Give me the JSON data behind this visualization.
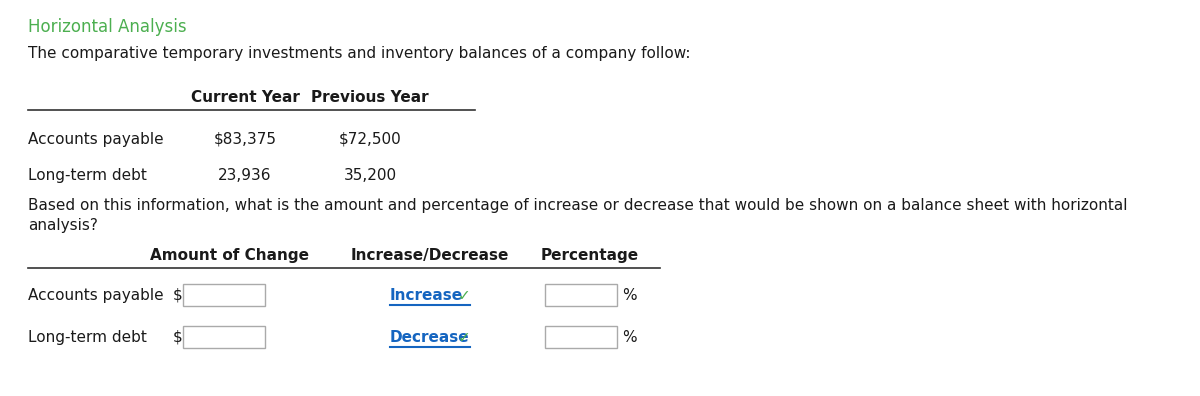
{
  "title": "Horizontal Analysis",
  "title_color": "#4CAF50",
  "subtitle": "The comparative temporary investments and inventory balances of a company follow:",
  "body_text_line1": "Based on this information, what is the amount and percentage of increase or decrease that would be shown on a balance sheet with horizontal",
  "body_text_line2": "analysis?",
  "bg_color": "#ffffff",
  "text_color": "#1a1a1a",
  "table1_headers": [
    "",
    "Current Year",
    "Previous Year"
  ],
  "table1_rows": [
    [
      "Accounts payable",
      "$83,375",
      "$72,500"
    ],
    [
      "Long-term debt",
      "23,936",
      "35,200"
    ]
  ],
  "table2_headers": [
    "",
    "Amount of Change",
    "Increase/Decrease",
    "Percentage"
  ],
  "table2_rows": [
    [
      "Accounts payable",
      "$",
      "Increase",
      "%"
    ],
    [
      "Long-term debt",
      "$",
      "Decrease",
      "%"
    ]
  ],
  "increase_color": "#1565C0",
  "check_color": "#4CAF50",
  "box_edge_color": "#aaaaaa",
  "line_color": "#333333",
  "font_size_title": 12,
  "font_size_body": 11,
  "font_size_table": 11
}
